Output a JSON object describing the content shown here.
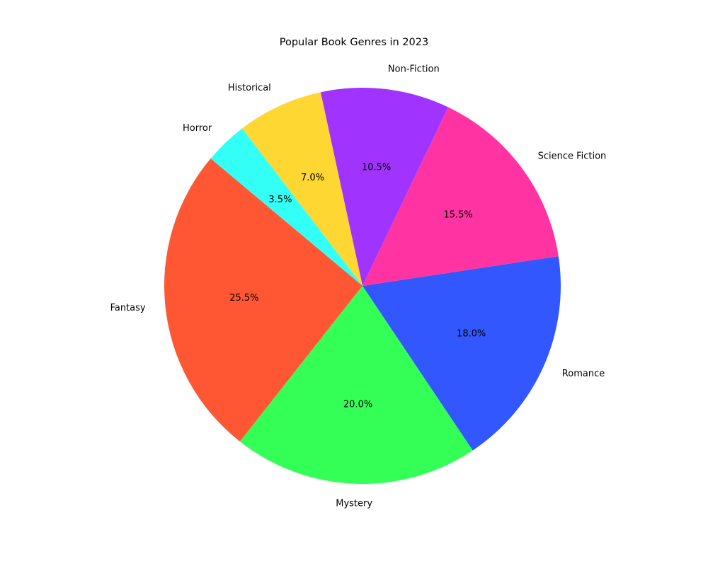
{
  "chart_data": {
    "type": "pie",
    "title": "Popular Book Genres in 2023",
    "start_angle_deg": 140,
    "direction": "counterclockwise",
    "slices": [
      {
        "label": "Fantasy",
        "value": 25.5,
        "pct_label": "25.5%",
        "color": "#FF5733"
      },
      {
        "label": "Mystery",
        "value": 20.0,
        "pct_label": "20.0%",
        "color": "#33FF57"
      },
      {
        "label": "Romance",
        "value": 18.0,
        "pct_label": "18.0%",
        "color": "#3357FF"
      },
      {
        "label": "Science Fiction",
        "value": 15.5,
        "pct_label": "15.5%",
        "color": "#FF33A1"
      },
      {
        "label": "Non-Fiction",
        "value": 10.5,
        "pct_label": "10.5%",
        "color": "#A133FF"
      },
      {
        "label": "Historical",
        "value": 7.0,
        "pct_label": "7.0%",
        "color": "#FFD733"
      },
      {
        "label": "Horror",
        "value": 3.5,
        "pct_label": "3.5%",
        "color": "#33FFF6"
      }
    ]
  }
}
